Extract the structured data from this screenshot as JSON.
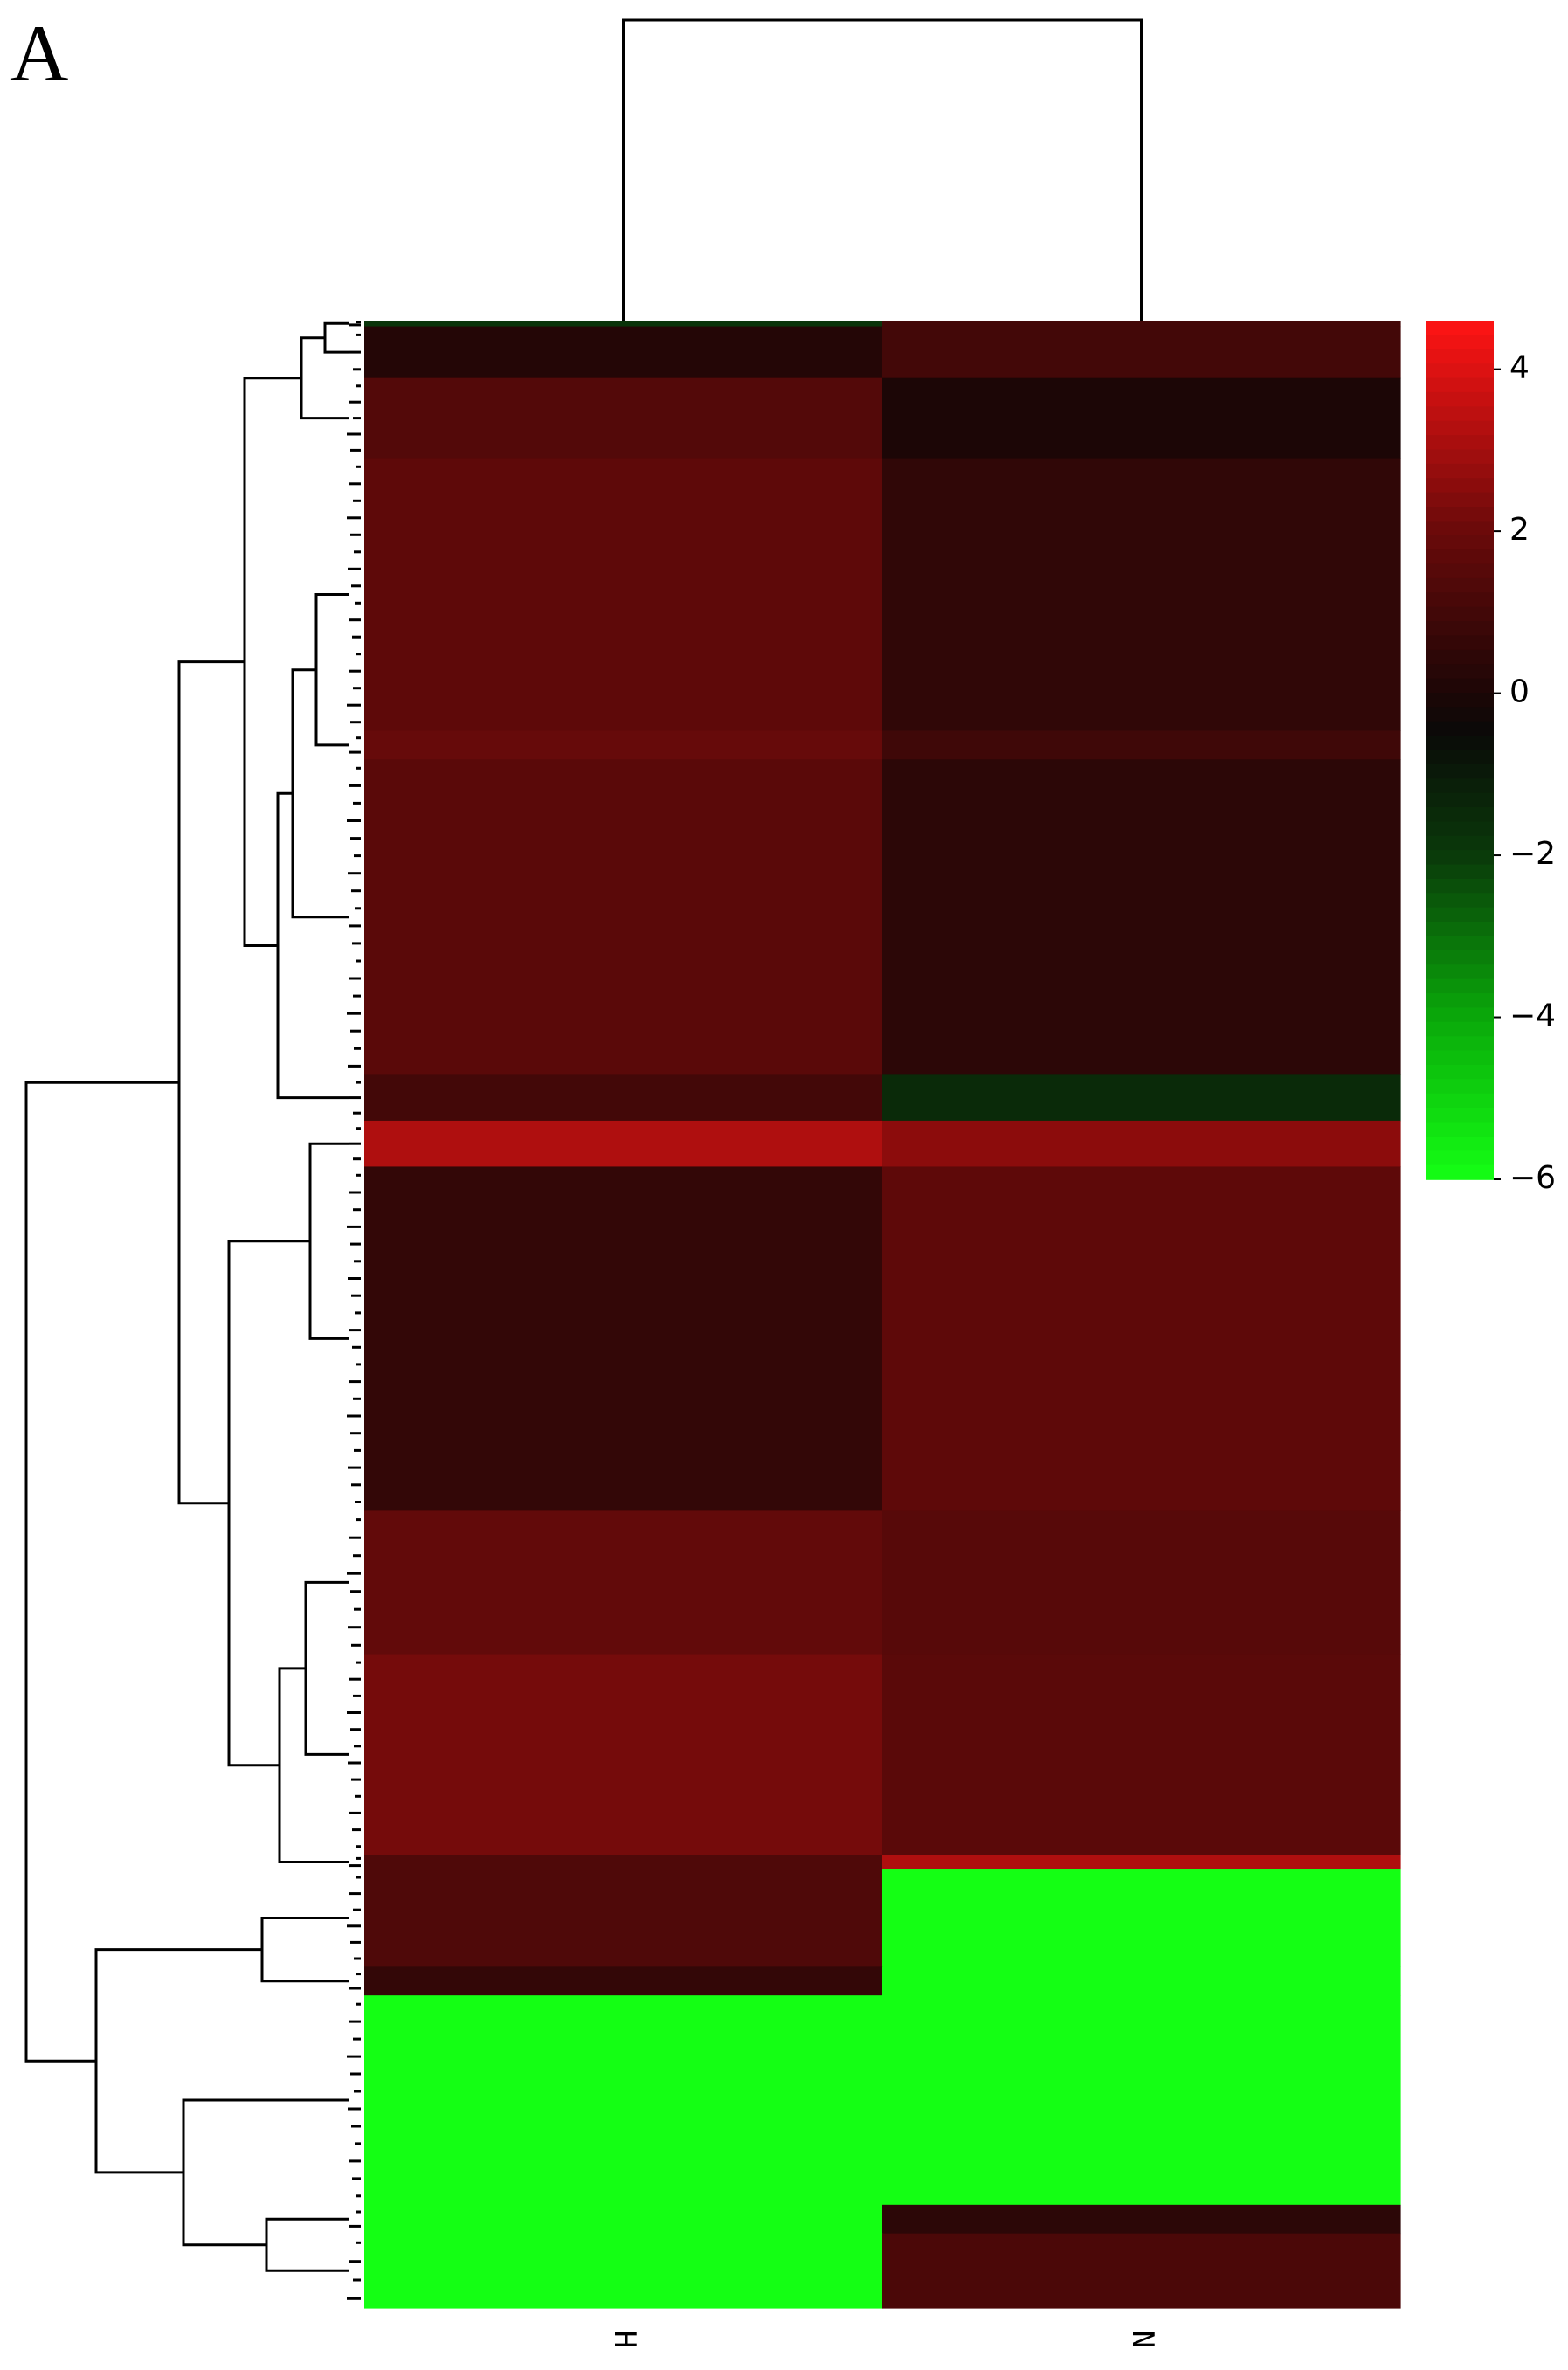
{
  "panel_label": "A",
  "chart_data": {
    "type": "heatmap",
    "title": "",
    "xlabel": "",
    "ylabel": "",
    "columns": [
      "H",
      "N"
    ],
    "row_dendrogram": true,
    "column_dendrogram": true,
    "color_scale": {
      "min": -6,
      "max": 4.6,
      "ticks": [
        4,
        2,
        0,
        -2,
        -4,
        -6
      ],
      "tick_labels": [
        "4",
        "2",
        "0",
        "−2",
        "−4",
        "−6"
      ],
      "stops": [
        {
          "value": -6,
          "color": "#14ff14"
        },
        {
          "value": -4,
          "color": "#0aa80a"
        },
        {
          "value": -2,
          "color": "#0a3a0a"
        },
        {
          "value": -0.5,
          "color": "#0a0a08"
        },
        {
          "value": 0,
          "color": "#1c0606"
        },
        {
          "value": 2,
          "color": "#6a0a0a"
        },
        {
          "value": 4.6,
          "color": "#ff1414"
        }
      ]
    },
    "row_blocks": [
      {
        "rows": 2,
        "values": [
          -1.8,
          1.0
        ]
      },
      {
        "rows": 18,
        "values": [
          0.2,
          1.0
        ]
      },
      {
        "rows": 28,
        "values": [
          1.4,
          0.0
        ]
      },
      {
        "rows": 95,
        "values": [
          1.7,
          0.5
        ]
      },
      {
        "rows": 10,
        "values": [
          1.9,
          0.9
        ]
      },
      {
        "rows": 110,
        "values": [
          1.6,
          0.4
        ]
      },
      {
        "rows": 16,
        "values": [
          1.0,
          -1.5
        ]
      },
      {
        "rows": 16,
        "values": [
          3.2,
          2.6
        ]
      },
      {
        "rows": 120,
        "values": [
          0.6,
          1.7
        ]
      },
      {
        "rows": 50,
        "values": [
          1.8,
          1.5
        ]
      },
      {
        "rows": 70,
        "values": [
          2.2,
          1.6
        ]
      },
      {
        "rows": 5,
        "values": [
          1.3,
          3.2
        ]
      },
      {
        "rows": 34,
        "values": [
          1.3,
          -6.0
        ]
      },
      {
        "rows": 10,
        "values": [
          0.6,
          -6.0
        ]
      },
      {
        "rows": 73,
        "values": [
          -6.0,
          -6.0
        ]
      },
      {
        "rows": 10,
        "values": [
          -6.0,
          0.4
        ]
      },
      {
        "rows": 26,
        "values": [
          -6.0,
          1.2
        ]
      }
    ]
  }
}
